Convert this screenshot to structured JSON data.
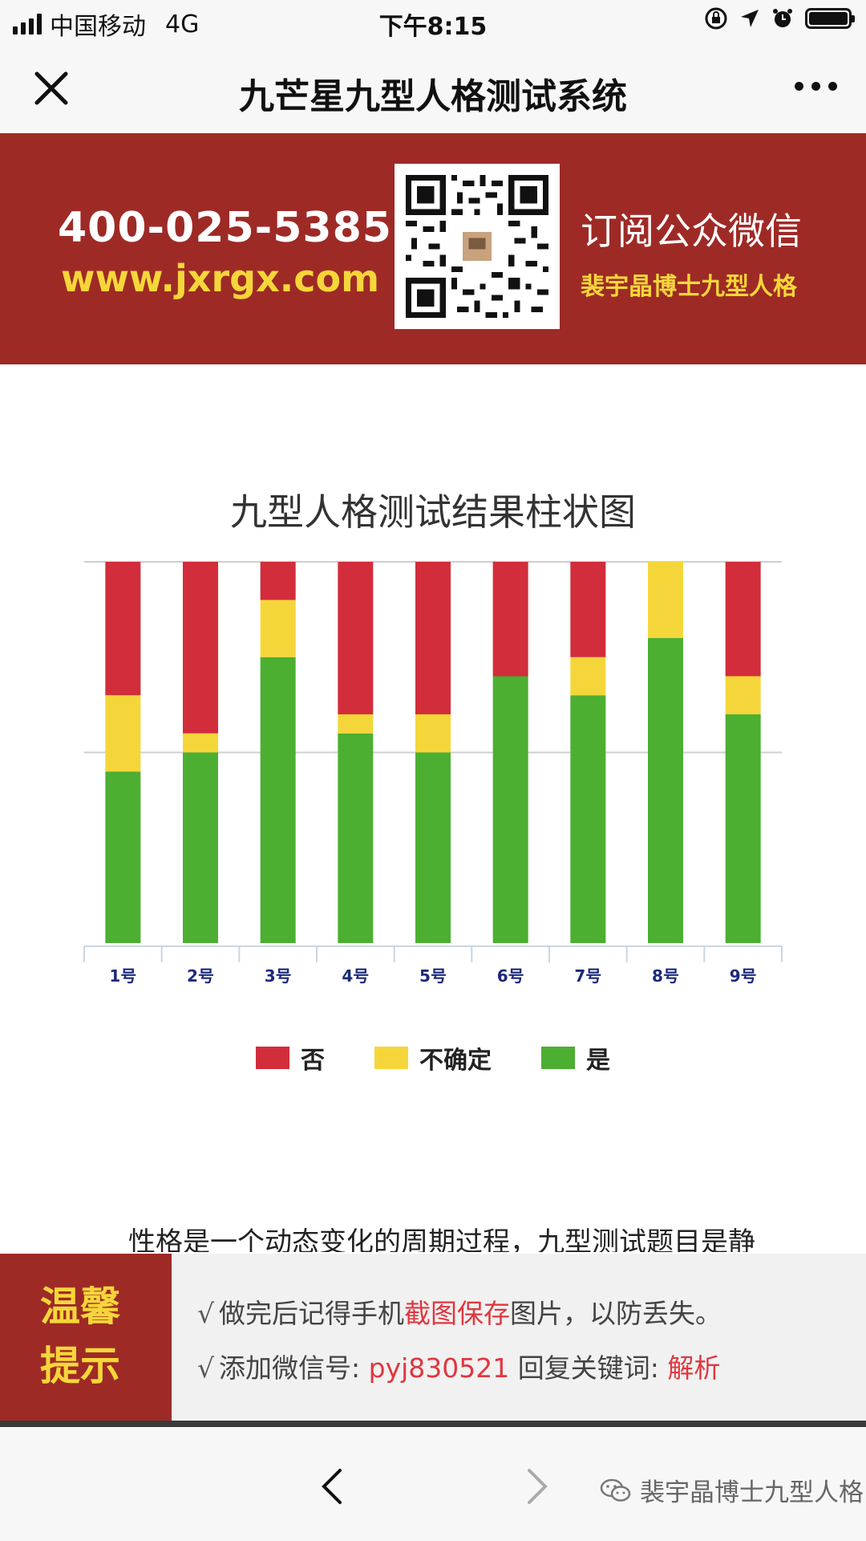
{
  "status_bar": {
    "carrier": "中国移动",
    "network": "4G",
    "time": "下午8:15"
  },
  "nav": {
    "title": "九芒星九型人格测试系统"
  },
  "banner": {
    "phone": "400-025-5385",
    "website": "www.jxrgx.com",
    "subscribe": "订阅公众微信",
    "author": "裴宇晶博士九型人格"
  },
  "chart_data": {
    "type": "bar",
    "stacked": true,
    "title": "九型人格测试结果柱状图",
    "categories": [
      "1号",
      "2号",
      "3号",
      "4号",
      "5号",
      "6号",
      "7号",
      "8号",
      "9号"
    ],
    "series": [
      {
        "name": "是",
        "color": "#4caf32",
        "values": [
          9,
          10,
          15,
          11,
          10,
          14,
          13,
          16,
          12
        ]
      },
      {
        "name": "不确定",
        "color": "#f5d63a",
        "values": [
          4,
          1,
          3,
          1,
          2,
          0,
          2,
          4,
          2
        ]
      },
      {
        "name": "否",
        "color": "#d22d3a",
        "values": [
          7,
          9,
          2,
          8,
          8,
          6,
          5,
          0,
          6
        ]
      }
    ],
    "ylim": [
      0,
      20
    ],
    "gridlines": [
      10,
      20
    ],
    "legend_position": "bottom",
    "legend_order": [
      "否",
      "不确定",
      "是"
    ]
  },
  "paragraph": "性格是一个动态变化的周期过程，九型测试题目是静",
  "tip": {
    "label_line1": "温馨",
    "label_line2": "提示",
    "line1_check": "√",
    "line1_pre": "做完后记得手机",
    "line1_highlight": "截图保存",
    "line1_post": "图片，以防丢失。",
    "line2_check": "√",
    "line2_pre": "添加微信号: ",
    "line2_wechat": "pyj830521",
    "line2_mid": " 回复关键词: ",
    "line2_keyword": "解析"
  },
  "watermark": "裴宇晶博士九型人格",
  "icons": {
    "close": "close-icon",
    "more": "more-icon",
    "back": "back-arrow-icon",
    "forward": "forward-arrow-icon",
    "qr": "qr-code-icon",
    "wechat": "wechat-icon"
  }
}
